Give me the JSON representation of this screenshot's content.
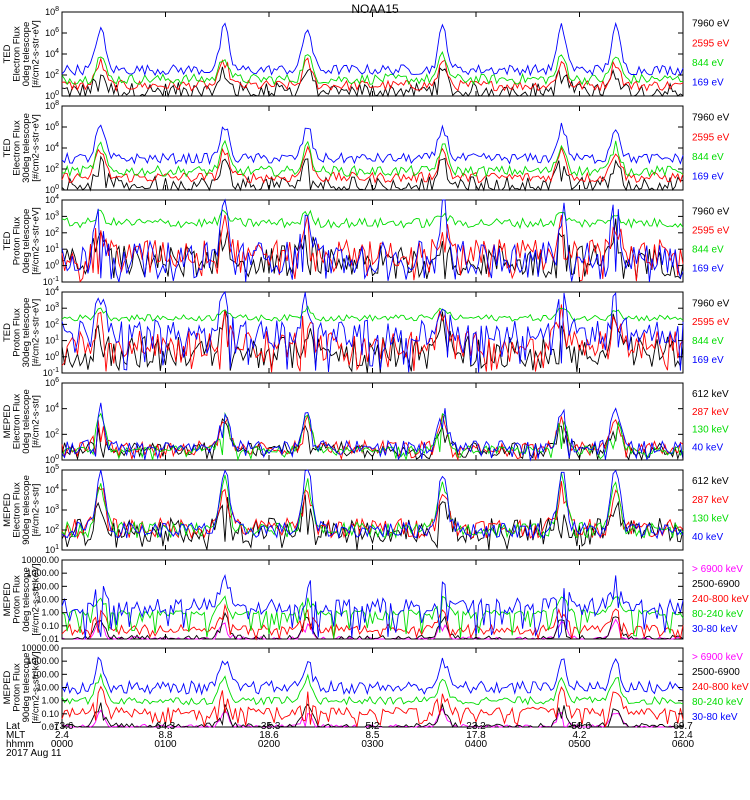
{
  "title": "NOAA15",
  "date_label": "2017 Aug 11",
  "chart_data": [
    {
      "type": "line",
      "ylabel_lines": [
        "TED",
        "Electron Flux",
        "0deg telescope",
        "[#/cm2-s-str-eV]"
      ],
      "ylog": true,
      "ylim_exp": [
        0,
        8
      ],
      "yticks_exp": [
        0,
        2,
        4,
        6,
        8
      ],
      "series": [
        {
          "name": "7960 eV",
          "color": "#000000",
          "base": 0.5,
          "peak": 2.3,
          "spread": 0.8,
          "spiky": true
        },
        {
          "name": "2595 eV",
          "color": "#ff0000",
          "base": 1.0,
          "peak": 3.2,
          "spread": 0.5,
          "spiky": false
        },
        {
          "name": "844 eV",
          "color": "#00dd00",
          "base": 1.6,
          "peak": 3.8,
          "spread": 0.5,
          "spiky": false
        },
        {
          "name": "169 eV",
          "color": "#0000ff",
          "base": 2.5,
          "peak": 6.5,
          "spread": 0.5,
          "spiky": false
        }
      ]
    },
    {
      "type": "line",
      "ylabel_lines": [
        "TED",
        "Electron Flux",
        "30deg telescope",
        "[#/cm2-s-str-eV]"
      ],
      "ylog": true,
      "ylim_exp": [
        0,
        8
      ],
      "yticks_exp": [
        0,
        2,
        4,
        6,
        8
      ],
      "series": [
        {
          "name": "7960 eV",
          "color": "#000000",
          "base": 0.5,
          "peak": 2.5,
          "spread": 0.8,
          "spiky": true
        },
        {
          "name": "2595 eV",
          "color": "#ff0000",
          "base": 1.2,
          "peak": 3.8,
          "spread": 0.5,
          "spiky": false
        },
        {
          "name": "844 eV",
          "color": "#00dd00",
          "base": 1.8,
          "peak": 4.2,
          "spread": 0.5,
          "spiky": false
        },
        {
          "name": "169 eV",
          "color": "#0000ff",
          "base": 3.0,
          "peak": 6.0,
          "spread": 0.5,
          "spiky": false
        }
      ]
    },
    {
      "type": "line",
      "ylabel_lines": [
        "TED",
        "Proton Flux",
        "0deg telescope",
        "[#/cm2-s-str-eV]"
      ],
      "ylog": true,
      "ylim_exp": [
        -1,
        4
      ],
      "yticks_exp": [
        -1,
        0,
        1,
        2,
        3,
        4
      ],
      "series": [
        {
          "name": "7960 eV",
          "color": "#000000",
          "base": 0.3,
          "peak": 2.0,
          "spread": 1.0,
          "spiky": true
        },
        {
          "name": "2595 eV",
          "color": "#ff0000",
          "base": 0.8,
          "peak": 2.5,
          "spread": 0.8,
          "spiky": true
        },
        {
          "name": "844 eV",
          "color": "#00dd00",
          "base": 2.6,
          "peak": 3.2,
          "spread": 0.3,
          "spiky": false
        },
        {
          "name": "169 eV",
          "color": "#0000ff",
          "base": 0.5,
          "peak": 3.5,
          "spread": 1.0,
          "spiky": true
        }
      ]
    },
    {
      "type": "line",
      "ylabel_lines": [
        "TED",
        "Proton Flux",
        "30deg telescope",
        "[#/cm2-s-str-eV]"
      ],
      "ylog": true,
      "ylim_exp": [
        -1,
        4
      ],
      "yticks_exp": [
        -1,
        0,
        1,
        2,
        3,
        4
      ],
      "series": [
        {
          "name": "7960 eV",
          "color": "#000000",
          "base": 0.3,
          "peak": 2.0,
          "spread": 1.0,
          "spiky": true
        },
        {
          "name": "2595 eV",
          "color": "#ff0000",
          "base": 0.8,
          "peak": 2.5,
          "spread": 0.8,
          "spiky": true
        },
        {
          "name": "844 eV",
          "color": "#00dd00",
          "base": 2.4,
          "peak": 3.0,
          "spread": 0.2,
          "spiky": false
        },
        {
          "name": "169 eV",
          "color": "#0000ff",
          "base": 1.5,
          "peak": 3.5,
          "spread": 0.8,
          "spiky": true
        }
      ]
    },
    {
      "type": "line",
      "ylabel_lines": [
        "MEPED",
        "Electron Flux",
        "0deg telescope",
        "[#/cm2-s-str]"
      ],
      "ylog": true,
      "ylim_exp": [
        0,
        6
      ],
      "yticks_exp": [
        0,
        2,
        4,
        6
      ],
      "series": [
        {
          "name": "612 keV",
          "color": "#000000",
          "base": 0.9,
          "peak": 3.0,
          "spread": 0.5,
          "spiky": true
        },
        {
          "name": "287 keV",
          "color": "#ff0000",
          "base": 1.0,
          "peak": 3.3,
          "spread": 0.5,
          "spiky": true
        },
        {
          "name": "130 keV",
          "color": "#00dd00",
          "base": 0.8,
          "peak": 3.5,
          "spread": 0.3,
          "spiky": true
        },
        {
          "name": "40 keV",
          "color": "#0000ff",
          "base": 1.0,
          "peak": 4.0,
          "spread": 0.5,
          "spiky": true
        }
      ]
    },
    {
      "type": "line",
      "ylabel_lines": [
        "MEPED",
        "Electron Flux",
        "90deg telescope",
        "[#/cm2-s-str]"
      ],
      "ylog": true,
      "ylim_exp": [
        1,
        5
      ],
      "yticks_exp": [
        1,
        2,
        3,
        4,
        5
      ],
      "series": [
        {
          "name": "612 keV",
          "color": "#000000",
          "base": 2.0,
          "peak": 3.5,
          "spread": 0.6,
          "spiky": true
        },
        {
          "name": "287 keV",
          "color": "#ff0000",
          "base": 2.1,
          "peak": 4.0,
          "spread": 0.5,
          "spiky": false
        },
        {
          "name": "130 keV",
          "color": "#00dd00",
          "base": 2.0,
          "peak": 4.5,
          "spread": 0.4,
          "spiky": false
        },
        {
          "name": "40 keV",
          "color": "#0000ff",
          "base": 2.0,
          "peak": 5.0,
          "spread": 0.4,
          "spiky": false
        }
      ]
    },
    {
      "type": "line",
      "ylabel_lines": [
        "MEPED",
        "Proton Flux",
        "0deg telescope",
        "[#/cm2-s-str-keV]"
      ],
      "ylog": true,
      "ylim_exp": [
        -2,
        4
      ],
      "ytick_labels": [
        "0.01",
        "0.10",
        "1.00",
        "10.00",
        "100.00",
        "1000.00",
        "10000.00"
      ],
      "yticks_exp": [
        -2,
        -1,
        0,
        1,
        2,
        3,
        4
      ],
      "series": [
        {
          "name": "> 6900 keV",
          "color": "#ff00ff",
          "base": -2.0,
          "peak": -0.7,
          "spread": 0.2,
          "spiky": true
        },
        {
          "name": "2500-6900",
          "color": "#000000",
          "base": -2.0,
          "peak": -0.3,
          "spread": 0.3,
          "spiky": true
        },
        {
          "name": "240-800 keV",
          "color": "#ff0000",
          "base": -1.2,
          "peak": 0.3,
          "spread": 0.3,
          "spiky": true
        },
        {
          "name": "80-240 keV",
          "color": "#00dd00",
          "base": 0.0,
          "peak": 1.2,
          "spread": 0.2,
          "spiky": true
        },
        {
          "name": "30-80 keV",
          "color": "#0000ff",
          "base": 0.5,
          "peak": 2.5,
          "spread": 0.6,
          "spiky": true
        }
      ]
    },
    {
      "type": "line",
      "ylabel_lines": [
        "MEPED",
        "Proton Flux",
        "90deg telescope",
        "[#/cm2-s-str-keV]"
      ],
      "ylog": true,
      "ylim_exp": [
        -2,
        4
      ],
      "ytick_labels": [
        "0.01",
        "0.10",
        "1.00",
        "10.00",
        "100.00",
        "1000.00",
        "10000.00"
      ],
      "yticks_exp": [
        -2,
        -1,
        0,
        1,
        2,
        3,
        4
      ],
      "series": [
        {
          "name": "> 6900 keV",
          "color": "#ff00ff",
          "base": -2.0,
          "peak": -0.8,
          "spread": 0.2,
          "spiky": true
        },
        {
          "name": "2500-6900",
          "color": "#000000",
          "base": -2.0,
          "peak": -0.4,
          "spread": 0.3,
          "spiky": true
        },
        {
          "name": "240-800 keV",
          "color": "#ff0000",
          "base": -0.8,
          "peak": 0.8,
          "spread": 0.3,
          "spiky": true
        },
        {
          "name": "80-240 keV",
          "color": "#00dd00",
          "base": 0.0,
          "peak": 1.8,
          "spread": 0.3,
          "spiky": false
        },
        {
          "name": "30-80 keV",
          "color": "#0000ff",
          "base": 1.0,
          "peak": 3.0,
          "spread": 0.5,
          "spiky": false
        }
      ]
    }
  ],
  "time_axis": {
    "row_labels": [
      "Lat",
      "MLT",
      "hhmm"
    ],
    "ticks": [
      {
        "lat": "-73.6",
        "mlt": "2.4",
        "hhmm": "0000"
      },
      {
        "lat": "64.3",
        "mlt": "8.8",
        "hhmm": "0100"
      },
      {
        "lat": "-35.3",
        "mlt": "18.6",
        "hhmm": "0200"
      },
      {
        "lat": "5.2",
        "mlt": "8.5",
        "hhmm": "0300"
      },
      {
        "lat": "23.2",
        "mlt": "17.8",
        "hhmm": "0400"
      },
      {
        "lat": "-50.6",
        "mlt": "4.2",
        "hhmm": "0500"
      },
      {
        "lat": "69.7",
        "mlt": "12.4",
        "hhmm": "0600"
      }
    ],
    "pass_hours": [
      0.37,
      1.57,
      2.37,
      3.68,
      4.83,
      5.35
    ]
  }
}
